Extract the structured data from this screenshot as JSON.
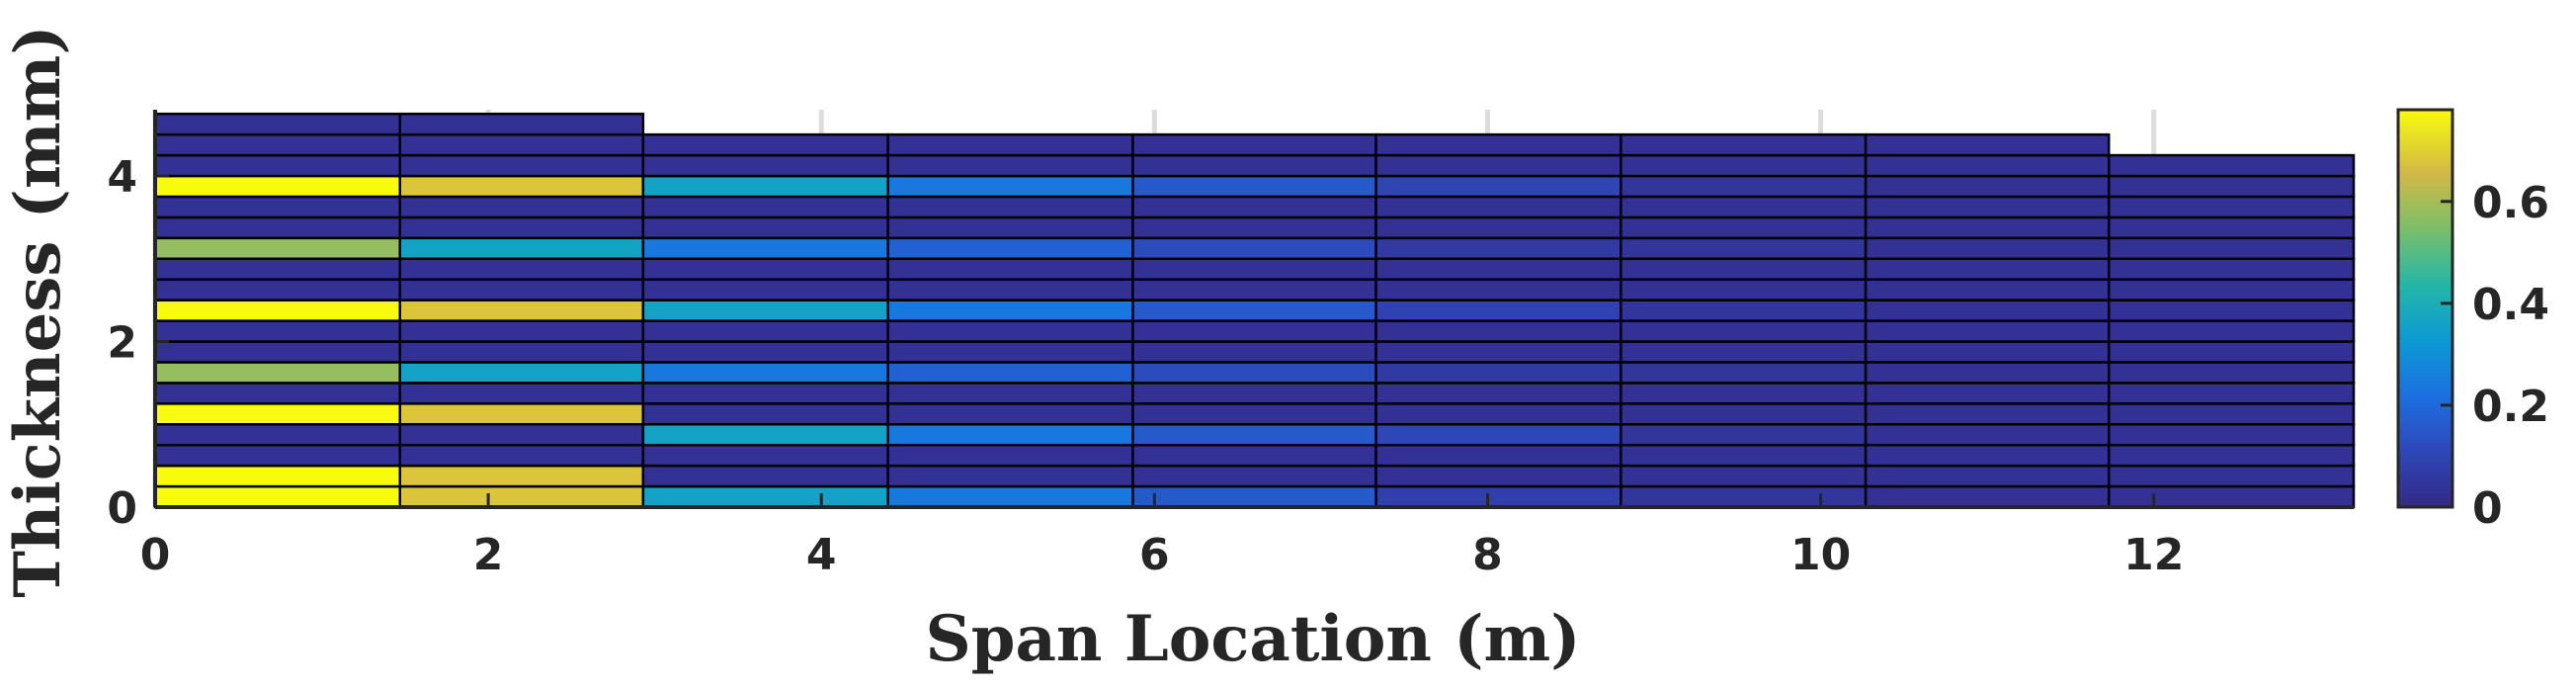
{
  "chart_data": {
    "type": "heatmap",
    "title": "",
    "xlabel": "Span Location (m)",
    "ylabel": "Thickness (mm)",
    "xlim": [
      0,
      13.2
    ],
    "ylim": [
      0,
      4.8
    ],
    "xticks": [
      "0",
      "2",
      "4",
      "6",
      "8",
      "10",
      "12"
    ],
    "yticks": [
      "0",
      "2",
      "4"
    ],
    "colorbar": {
      "ticks": [
        "0",
        "0.2",
        "0.4",
        "0.6"
      ],
      "range": [
        0,
        0.78
      ]
    },
    "grid": true,
    "segments": [
      {
        "x_start": 0.0,
        "x_end": 1.47,
        "layer_count": 19,
        "thickness": 4.75,
        "values": [
          0.78,
          0.78,
          0.03,
          0.03,
          0.78,
          0.03,
          0.58,
          0.03,
          0.03,
          0.78,
          0.03,
          0.03,
          0.58,
          0.03,
          0.03,
          0.78,
          0.03,
          0.03,
          0.03
        ]
      },
      {
        "x_start": 1.47,
        "x_end": 2.93,
        "layer_count": 19,
        "thickness": 4.75,
        "values": [
          0.68,
          0.68,
          0.03,
          0.03,
          0.68,
          0.03,
          0.36,
          0.03,
          0.03,
          0.68,
          0.03,
          0.03,
          0.36,
          0.03,
          0.03,
          0.68,
          0.03,
          0.03,
          0.03
        ]
      },
      {
        "x_start": 2.93,
        "x_end": 4.4,
        "layer_count": 18,
        "thickness": 4.5,
        "values": [
          0.36,
          0.03,
          0.03,
          0.36,
          0.03,
          0.03,
          0.24,
          0.03,
          0.03,
          0.36,
          0.03,
          0.03,
          0.24,
          0.03,
          0.03,
          0.36,
          0.03,
          0.03
        ]
      },
      {
        "x_start": 4.4,
        "x_end": 5.87,
        "layer_count": 18,
        "thickness": 4.5,
        "values": [
          0.24,
          0.03,
          0.03,
          0.24,
          0.03,
          0.03,
          0.18,
          0.03,
          0.03,
          0.24,
          0.03,
          0.03,
          0.18,
          0.03,
          0.03,
          0.24,
          0.03,
          0.03
        ]
      },
      {
        "x_start": 5.87,
        "x_end": 7.33,
        "layer_count": 18,
        "thickness": 4.5,
        "values": [
          0.16,
          0.03,
          0.03,
          0.16,
          0.03,
          0.03,
          0.12,
          0.03,
          0.03,
          0.16,
          0.03,
          0.03,
          0.12,
          0.03,
          0.03,
          0.16,
          0.03,
          0.03
        ]
      },
      {
        "x_start": 7.33,
        "x_end": 8.8,
        "layer_count": 18,
        "thickness": 4.5,
        "values": [
          0.08,
          0.03,
          0.03,
          0.11,
          0.03,
          0.03,
          0.06,
          0.03,
          0.03,
          0.09,
          0.03,
          0.03,
          0.06,
          0.03,
          0.03,
          0.1,
          0.03,
          0.03
        ]
      },
      {
        "x_start": 8.8,
        "x_end": 10.27,
        "layer_count": 18,
        "thickness": 4.5,
        "values": [
          0.04,
          0.03,
          0.03,
          0.04,
          0.03,
          0.03,
          0.04,
          0.03,
          0.03,
          0.04,
          0.03,
          0.03,
          0.04,
          0.03,
          0.03,
          0.04,
          0.03,
          0.03
        ]
      },
      {
        "x_start": 10.27,
        "x_end": 11.73,
        "layer_count": 18,
        "thickness": 4.5,
        "values": [
          0.03,
          0.03,
          0.03,
          0.03,
          0.03,
          0.03,
          0.03,
          0.03,
          0.03,
          0.03,
          0.03,
          0.03,
          0.03,
          0.03,
          0.03,
          0.03,
          0.03,
          0.03
        ]
      },
      {
        "x_start": 11.73,
        "x_end": 13.2,
        "layer_count": 17,
        "thickness": 4.25,
        "values": [
          0.03,
          0.03,
          0.03,
          0.03,
          0.03,
          0.03,
          0.03,
          0.03,
          0.03,
          0.03,
          0.03,
          0.03,
          0.03,
          0.03,
          0.03,
          0.03,
          0.03
        ]
      }
    ]
  }
}
